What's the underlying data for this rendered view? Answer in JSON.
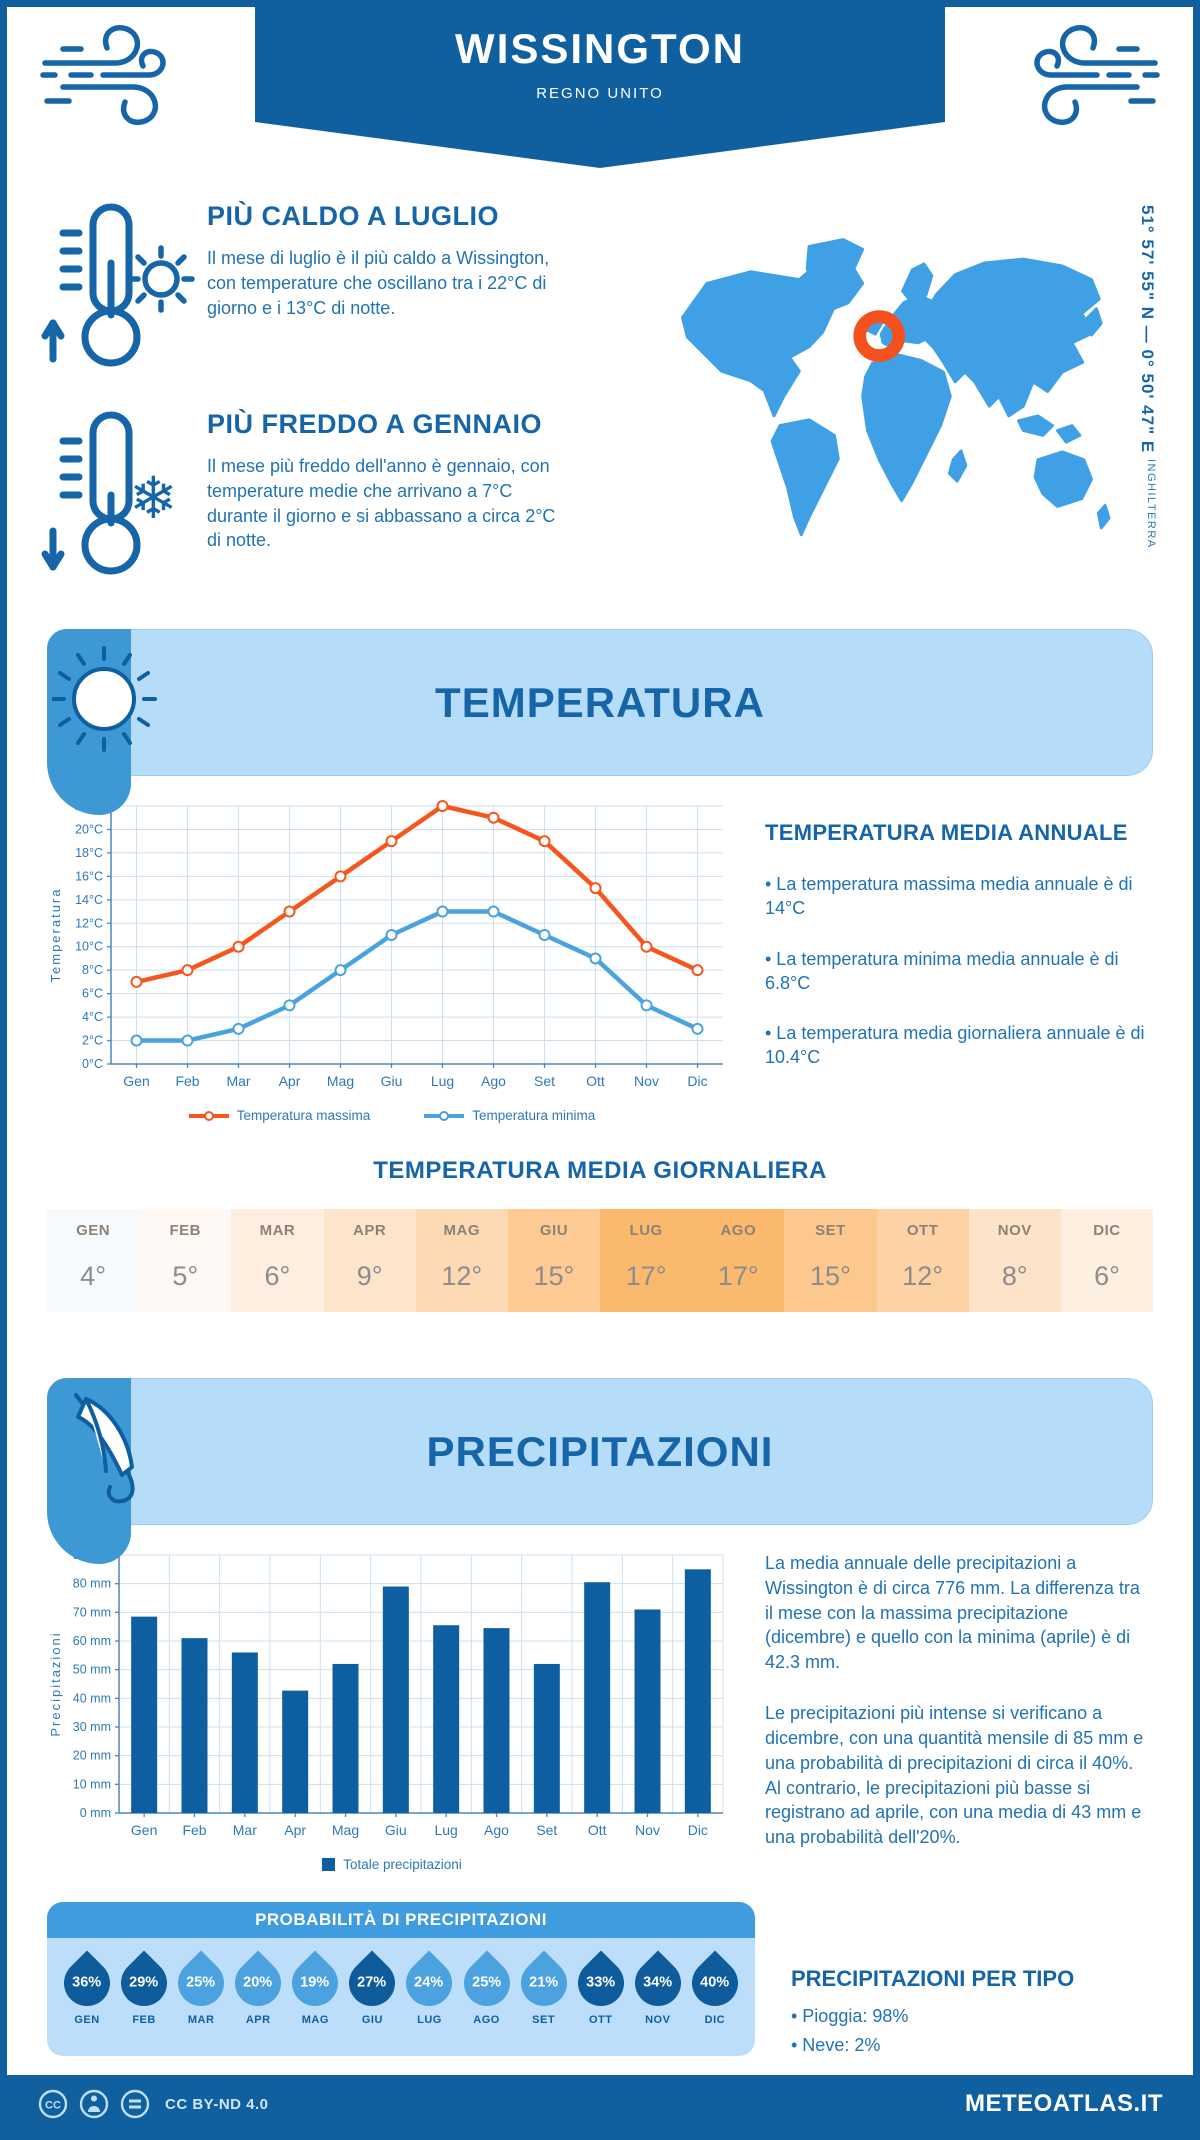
{
  "header": {
    "title": "WISSINGTON",
    "subtitle": "REGNO UNITO"
  },
  "highlights": {
    "warm": {
      "title": "PIÙ CALDO A LUGLIO",
      "text": "Il mese di luglio è il più caldo a Wissington, con temperature che oscillano tra i 22°C di giorno e i 13°C di notte."
    },
    "cold": {
      "title": "PIÙ FREDDO A GENNAIO",
      "text": "Il mese più freddo dell'anno è gennaio, con temperature medie che arrivano a 7°C durante il giorno e si abbassano a circa 2°C di notte."
    }
  },
  "map": {
    "coordinates": "51° 57' 55\" N — 0° 50' 47\" E",
    "region": "INGHILTERRA"
  },
  "temperature_section": {
    "banner_title": "TEMPERATURA",
    "annual": {
      "title": "TEMPERATURA MEDIA ANNUALE",
      "bullets": [
        "• La temperatura massima media annuale è di 14°C",
        "• La temperatura minima media annuale è di 6.8°C",
        "• La temperatura media giornaliera annuale è di 10.4°C"
      ]
    },
    "daily": {
      "title": "TEMPERATURA MEDIA GIORNALIERA",
      "months": [
        "GEN",
        "FEB",
        "MAR",
        "APR",
        "MAG",
        "GIU",
        "LUG",
        "AGO",
        "SET",
        "OTT",
        "NOV",
        "DIC"
      ],
      "values": [
        "4°",
        "5°",
        "6°",
        "9°",
        "12°",
        "15°",
        "17°",
        "17°",
        "15°",
        "12°",
        "8°",
        "6°"
      ],
      "cell_colors": [
        "#F7FAFD",
        "#FEF9F4",
        "#FDEEDF",
        "#FDE5CB",
        "#FDD9B3",
        "#FCCA92",
        "#FBB96E",
        "#FBB96E",
        "#FCC88E",
        "#FDD2A4",
        "#FDE4C9",
        "#FEF0E1"
      ]
    }
  },
  "precipitation_section": {
    "banner_title": "PRECIPITAZIONI",
    "paragraphs": [
      "La media annuale delle precipitazioni a Wissington è di circa 776 mm. La differenza tra il mese con la massima precipitazione (dicembre) e quello con la minima (aprile) è di 42.3 mm.",
      "Le precipitazioni più intense si verificano a dicembre, con una quantità mensile di 85 mm e una probabilità di precipitazioni di circa il 40%. Al contrario, le precipitazioni più basse si registrano ad aprile, con una media di 43 mm e una probabilità dell'20%."
    ],
    "probability": {
      "title": "PROBABILITÀ DI PRECIPITAZIONI",
      "months": [
        "GEN",
        "FEB",
        "MAR",
        "APR",
        "MAG",
        "GIU",
        "LUG",
        "AGO",
        "SET",
        "OTT",
        "NOV",
        "DIC"
      ],
      "values": [
        "36%",
        "29%",
        "25%",
        "20%",
        "19%",
        "27%",
        "24%",
        "25%",
        "21%",
        "33%",
        "34%",
        "40%"
      ],
      "dark": [
        true,
        true,
        false,
        false,
        false,
        true,
        false,
        false,
        false,
        true,
        true,
        true
      ],
      "drop_dark_color": "#0E5C9C",
      "drop_light_color": "#4BA2DF"
    },
    "types": {
      "title": "PRECIPITAZIONI PER TIPO",
      "bullets": [
        "• Pioggia: 98%",
        "• Neve: 2%"
      ]
    }
  },
  "footer": {
    "license": "CC BY-ND 4.0",
    "site": "METEOATLAS.IT"
  },
  "colors": {
    "primary_dark_blue": "#10609F",
    "heading_blue": "#1565A8",
    "body_blue": "#2272B4",
    "banner_light": "#B5DCF8",
    "banner_tab": "#3E98D4",
    "map_land": "#3FA0E6",
    "marker_orange": "#F4511E",
    "grid_blue": "#CCE0F2"
  },
  "chart_data": [
    {
      "type": "line",
      "title": "",
      "categories": [
        "Gen",
        "Feb",
        "Mar",
        "Apr",
        "Mag",
        "Giu",
        "Lug",
        "Ago",
        "Set",
        "Ott",
        "Nov",
        "Dic"
      ],
      "series": [
        {
          "name": "Temperatura massima",
          "color": "#F6561D",
          "values": [
            7,
            8,
            10,
            13,
            16,
            19,
            22,
            21,
            19,
            15,
            10,
            8
          ]
        },
        {
          "name": "Temperatura minima",
          "color": "#4AA2DE",
          "values": [
            2,
            2,
            3,
            5,
            8,
            11,
            13,
            13,
            11,
            9,
            5,
            3
          ]
        }
      ],
      "xlabel": "",
      "ylabel": "Temperatura",
      "ylim": [
        0,
        22
      ],
      "ytick_step": 2,
      "ytick_suffix": "°C",
      "grid": true,
      "legend_position": "bottom"
    },
    {
      "type": "bar",
      "title": "",
      "categories": [
        "Gen",
        "Feb",
        "Mar",
        "Apr",
        "Mag",
        "Giu",
        "Lug",
        "Ago",
        "Set",
        "Ott",
        "Nov",
        "Dic"
      ],
      "series": [
        {
          "name": "Totale precipitazioni",
          "color": "#0E5FA1",
          "values": [
            68.5,
            61,
            56,
            42.7,
            52,
            79,
            65.5,
            64.5,
            52,
            80.5,
            71,
            85
          ]
        }
      ],
      "xlabel": "",
      "ylabel": "Precipitazioni",
      "ylim": [
        0,
        90
      ],
      "ytick_step": 10,
      "ytick_suffix": " mm",
      "grid": true,
      "legend_position": "bottom"
    }
  ]
}
